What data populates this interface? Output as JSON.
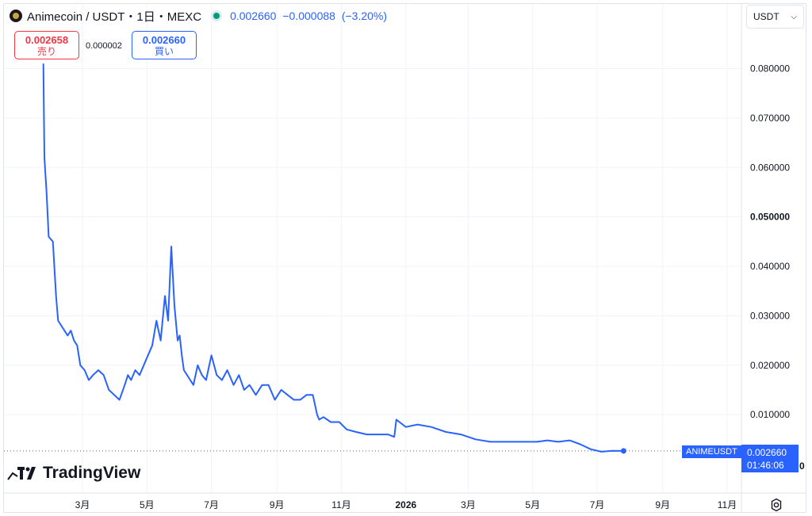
{
  "header": {
    "symbol": "Animecoin / USDT・1日・MEXC",
    "last_price": "0.002660",
    "change": "−0.000088",
    "change_pct": "(−3.20%)"
  },
  "orders": {
    "sell_price": "0.002658",
    "sell_label": "売り",
    "spread": "0.000002",
    "buy_price": "0.002660",
    "buy_label": "買い"
  },
  "currency_select": {
    "value": "USDT"
  },
  "brand": {
    "name": "TradingView"
  },
  "price_badge": {
    "symbol": "ANIMEUSDT",
    "price": "0.002660",
    "countdown": "01:46:06",
    "trailing_digit": "0"
  },
  "colors": {
    "line": "#2962ff",
    "sell": "#f23645",
    "buy": "#2962ff",
    "grid": "#f0f3fa",
    "live_dot": "#089981"
  },
  "icons": {
    "coin": "animecoin-logo-icon",
    "status": "market-open-dot-icon",
    "select": "chevron-down-icon",
    "settings": "gear-icon",
    "brand": "tradingview-logo-icon"
  },
  "chart_data": {
    "type": "line",
    "title": "Animecoin / USDT・1日・MEXC",
    "xlabel": "",
    "ylabel": "",
    "ylim": [
      0,
      0.088
    ],
    "y_ticks": [
      {
        "value": 0.08,
        "label": "0.080000"
      },
      {
        "value": 0.07,
        "label": "0.070000"
      },
      {
        "value": 0.06,
        "label": "0.060000"
      },
      {
        "value": 0.05,
        "label": "0.050000"
      },
      {
        "value": 0.04,
        "label": "0.040000"
      },
      {
        "value": 0.03,
        "label": "0.030000"
      },
      {
        "value": 0.02,
        "label": "0.020000"
      },
      {
        "value": 0.01,
        "label": "0.010000"
      }
    ],
    "x_ticks": [
      {
        "label": "3月",
        "date": "2025-03-01"
      },
      {
        "label": "5月",
        "date": "2025-05-01"
      },
      {
        "label": "7月",
        "date": "2025-07-01"
      },
      {
        "label": "9月",
        "date": "2025-09-01"
      },
      {
        "label": "11月",
        "date": "2025-11-01"
      },
      {
        "label": "2026",
        "date": "2026-01-01",
        "bold": true
      },
      {
        "label": "3月",
        "date": "2026-03-01"
      },
      {
        "label": "5月",
        "date": "2026-05-01"
      },
      {
        "label": "7月",
        "date": "2026-07-01"
      },
      {
        "label": "9月",
        "date": "2026-09-01"
      },
      {
        "label": "11月",
        "date": "2026-11-01"
      }
    ],
    "xlim": [
      "2025-01-01",
      "2026-11-28"
    ],
    "grid": true,
    "series": [
      {
        "name": "ANIMEUSDT",
        "x": [
          "2025-01-23",
          "2025-01-24",
          "2025-01-26",
          "2025-01-28",
          "2025-02-01",
          "2025-02-04",
          "2025-02-06",
          "2025-02-09",
          "2025-02-12",
          "2025-02-15",
          "2025-02-18",
          "2025-02-21",
          "2025-02-24",
          "2025-02-27",
          "2025-03-03",
          "2025-03-07",
          "2025-03-11",
          "2025-03-16",
          "2025-03-21",
          "2025-03-26",
          "2025-03-31",
          "2025-04-05",
          "2025-04-10",
          "2025-04-13",
          "2025-04-16",
          "2025-04-20",
          "2025-04-24",
          "2025-04-28",
          "2025-05-02",
          "2025-05-06",
          "2025-05-10",
          "2025-05-14",
          "2025-05-18",
          "2025-05-21",
          "2025-05-24",
          "2025-05-27",
          "2025-05-30",
          "2025-06-01",
          "2025-06-03",
          "2025-06-05",
          "2025-06-08",
          "2025-06-11",
          "2025-06-14",
          "2025-06-18",
          "2025-06-22",
          "2025-06-26",
          "2025-07-01",
          "2025-07-06",
          "2025-07-11",
          "2025-07-16",
          "2025-07-22",
          "2025-07-27",
          "2025-08-01",
          "2025-08-06",
          "2025-08-12",
          "2025-08-18",
          "2025-08-24",
          "2025-08-30",
          "2025-09-05",
          "2025-09-11",
          "2025-09-17",
          "2025-09-23",
          "2025-09-29",
          "2025-10-05",
          "2025-10-09",
          "2025-10-11",
          "2025-10-15",
          "2025-10-22",
          "2025-10-30",
          "2025-11-06",
          "2025-11-15",
          "2025-11-25",
          "2025-12-05",
          "2025-12-15",
          "2025-12-21",
          "2025-12-23",
          "2026-01-01",
          "2026-01-12",
          "2026-01-25",
          "2026-02-08",
          "2026-02-22",
          "2026-03-08",
          "2026-03-22",
          "2026-04-05",
          "2026-04-20",
          "2026-05-05",
          "2026-05-15",
          "2026-05-25",
          "2026-06-05",
          "2026-06-15",
          "2026-06-25",
          "2026-07-05",
          "2026-07-15",
          "2026-07-26"
        ],
        "y": [
          0.081,
          0.062,
          0.055,
          0.046,
          0.045,
          0.034,
          0.029,
          0.028,
          0.027,
          0.026,
          0.027,
          0.025,
          0.024,
          0.02,
          0.019,
          0.017,
          0.018,
          0.019,
          0.018,
          0.015,
          0.014,
          0.013,
          0.016,
          0.018,
          0.017,
          0.019,
          0.018,
          0.02,
          0.022,
          0.024,
          0.029,
          0.025,
          0.034,
          0.029,
          0.044,
          0.032,
          0.025,
          0.026,
          0.022,
          0.019,
          0.018,
          0.017,
          0.016,
          0.02,
          0.018,
          0.017,
          0.022,
          0.018,
          0.017,
          0.019,
          0.016,
          0.018,
          0.015,
          0.016,
          0.014,
          0.016,
          0.016,
          0.013,
          0.015,
          0.014,
          0.013,
          0.013,
          0.014,
          0.014,
          0.01,
          0.009,
          0.0095,
          0.0085,
          0.0085,
          0.007,
          0.0065,
          0.006,
          0.006,
          0.006,
          0.0055,
          0.009,
          0.0075,
          0.008,
          0.0075,
          0.0065,
          0.006,
          0.005,
          0.0045,
          0.0045,
          0.0045,
          0.0045,
          0.0048,
          0.0045,
          0.0048,
          0.004,
          0.003,
          0.0025,
          0.0027,
          0.00266
        ]
      }
    ],
    "last_price_line": 0.00266
  }
}
